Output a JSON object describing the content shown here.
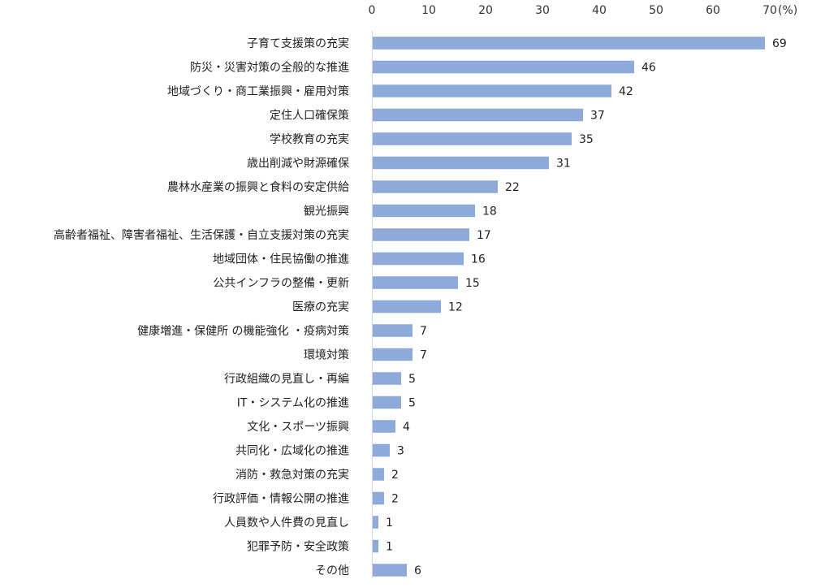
{
  "chart_data": {
    "type": "bar",
    "orientation": "horizontal",
    "unit_label": "(%)",
    "xlim": [
      0,
      70
    ],
    "xticks": [
      0,
      10,
      20,
      30,
      40,
      50,
      60,
      70
    ],
    "grid": false,
    "bar_color": "#8eaadb",
    "categories": [
      "子育て支援策の充実",
      "防災・災害対策の全般的な推進",
      "地域づくり・商工業振興・雇用対策",
      "定住人口確保策",
      "学校教育の充実",
      "歳出削減や財源確保",
      "農林水産業の振興と食料の安定供給",
      "観光振興",
      "高齢者福祉、障害者福祉、生活保護・自立支援対策の充実",
      "地域団体・住民協働の推進",
      "公共インフラの整備・更新",
      "医療の充実",
      "健康増進・保健所 の機能強化 ・疫病対策",
      "環境対策",
      "行政組織の見直し・再編",
      "IT・システム化の推進",
      "文化・スポーツ振興",
      "共同化・広域化の推進",
      "消防・救急対策の充実",
      "行政評価・情報公開の推進",
      "人員数や人件費の見直し",
      "犯罪予防・安全政策",
      "その他"
    ],
    "values": [
      69,
      46,
      42,
      37,
      35,
      31,
      22,
      18,
      17,
      16,
      15,
      12,
      7,
      7,
      5,
      5,
      4,
      3,
      2,
      2,
      1,
      1,
      6
    ]
  }
}
